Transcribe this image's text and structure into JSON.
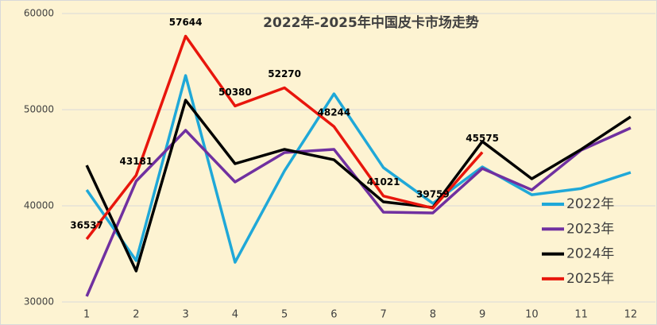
{
  "chart_data": {
    "type": "line",
    "title": "2022年-2025年中国皮卡市场走势",
    "categories": [
      "1",
      "2",
      "3",
      "4",
      "5",
      "6",
      "7",
      "8",
      "9",
      "10",
      "11",
      "12"
    ],
    "series": [
      {
        "name": "2022年",
        "color": "#1fa8d8",
        "values": [
          41650,
          34300,
          53550,
          34130,
          43640,
          51650,
          43970,
          40250,
          44050,
          41150,
          41800,
          43470
        ]
      },
      {
        "name": "2023年",
        "color": "#7030a0",
        "values": [
          30580,
          42560,
          47850,
          42480,
          45540,
          45870,
          39340,
          39260,
          43880,
          41650,
          45790,
          48100
        ]
      },
      {
        "name": "2024年",
        "color": "#000000",
        "values": [
          44210,
          33220,
          50990,
          44380,
          45870,
          44790,
          40410,
          39830,
          46690,
          42810,
          45870,
          49260
        ]
      },
      {
        "name": "2025年",
        "color": "#e8160c",
        "values": [
          36537,
          43181,
          57644,
          50380,
          52270,
          48244,
          41021,
          39759,
          45575,
          null,
          null,
          null
        ],
        "show_labels": true
      }
    ],
    "ylim": [
      30000,
      60000
    ],
    "yticks": [
      30000,
      40000,
      50000,
      60000
    ],
    "grid": true,
    "legend_position": "right"
  }
}
